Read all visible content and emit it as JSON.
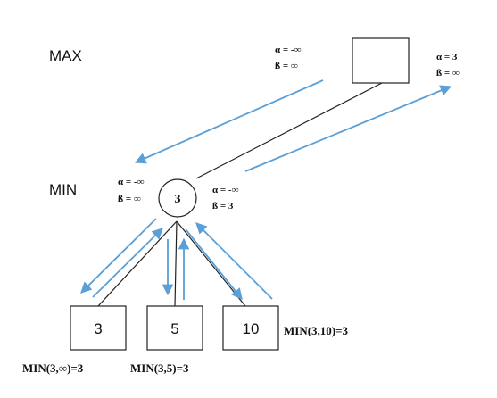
{
  "levels": {
    "max": "MAX",
    "min": "MIN"
  },
  "max_node": {
    "before": {
      "alpha": "α = -∞",
      "beta": "ß = ∞"
    },
    "after": {
      "alpha": "α = 3",
      "beta": "ß = ∞"
    }
  },
  "min_node": {
    "value": "3",
    "before": {
      "alpha": "α = -∞",
      "beta": "ß = ∞"
    },
    "after": {
      "alpha": "α = -∞",
      "beta": "ß = 3"
    }
  },
  "leaves": [
    {
      "value": "3",
      "formula": "MIN(3,∞)=3"
    },
    {
      "value": "5",
      "formula": "MIN(3,5)=3"
    },
    {
      "value": "10",
      "formula": "MIN(3,10)=3"
    }
  ],
  "colors": {
    "arrow": "#5a9fd6",
    "line": "#222222"
  }
}
